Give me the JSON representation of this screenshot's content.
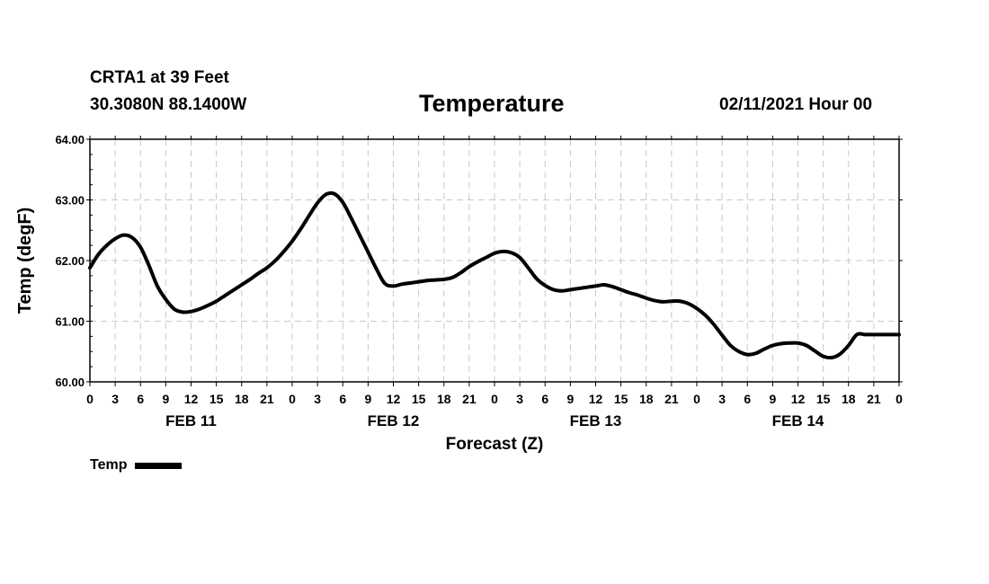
{
  "header": {
    "station": "CRTA1 at 39 Feet",
    "latlon": "30.3080N 88.1400W",
    "run": "02/11/2021 Hour 00"
  },
  "chart_data": {
    "type": "line",
    "title": "Temperature",
    "xlabel": "Forecast (Z)",
    "ylabel": "Temp (degF)",
    "ylim": [
      60.0,
      64.0
    ],
    "yticks": [
      "60.00",
      "61.00",
      "62.00",
      "63.00",
      "64.00"
    ],
    "xlim": [
      0,
      96
    ],
    "xtick_hours": [
      0,
      3,
      6,
      9,
      12,
      15,
      18,
      21,
      24,
      27,
      30,
      33,
      36,
      39,
      42,
      45,
      48,
      51,
      54,
      57,
      60,
      63,
      66,
      69,
      72,
      75,
      78,
      81,
      84,
      87,
      90,
      93,
      96
    ],
    "xtick_labels": [
      "0",
      "3",
      "6",
      "9",
      "12",
      "15",
      "18",
      "21",
      "0",
      "3",
      "6",
      "9",
      "12",
      "15",
      "18",
      "21",
      "0",
      "3",
      "6",
      "9",
      "12",
      "15",
      "18",
      "21",
      "0",
      "3",
      "6",
      "9",
      "12",
      "15",
      "18",
      "21",
      "0"
    ],
    "day_labels": [
      {
        "label": "FEB 11",
        "hour": 12
      },
      {
        "label": "FEB 12",
        "hour": 36
      },
      {
        "label": "FEB 13",
        "hour": 60
      },
      {
        "label": "FEB 14",
        "hour": 84
      }
    ],
    "grid": true,
    "series": [
      {
        "name": "Temp",
        "color": "#000000",
        "x": [
          0,
          1,
          2,
          3,
          4,
          5,
          6,
          7,
          8,
          9,
          10,
          11,
          12,
          13,
          14,
          15,
          16,
          17,
          18,
          19,
          20,
          21,
          22,
          23,
          24,
          25,
          26,
          27,
          28,
          29,
          30,
          31,
          32,
          33,
          34,
          35,
          36,
          37,
          38,
          39,
          40,
          41,
          42,
          43,
          44,
          45,
          46,
          47,
          48,
          49,
          50,
          51,
          52,
          53,
          54,
          55,
          56,
          57,
          58,
          59,
          60,
          61,
          62,
          63,
          64,
          65,
          66,
          67,
          68,
          69,
          70,
          71,
          72,
          73,
          74,
          75,
          76,
          77,
          78,
          79,
          80,
          81,
          82,
          83,
          84,
          85,
          86,
          87,
          88,
          89,
          90,
          91,
          92,
          93,
          94,
          95,
          96
        ],
        "values": [
          61.88,
          62.1,
          62.25,
          62.36,
          62.42,
          62.38,
          62.22,
          61.92,
          61.58,
          61.36,
          61.2,
          61.15,
          61.16,
          61.2,
          61.26,
          61.33,
          61.42,
          61.51,
          61.6,
          61.69,
          61.79,
          61.88,
          62.0,
          62.15,
          62.32,
          62.52,
          62.74,
          62.95,
          63.09,
          63.1,
          62.96,
          62.7,
          62.42,
          62.14,
          61.86,
          61.62,
          61.58,
          61.61,
          61.63,
          61.65,
          61.67,
          61.68,
          61.69,
          61.72,
          61.8,
          61.9,
          61.98,
          62.05,
          62.12,
          62.15,
          62.13,
          62.05,
          61.88,
          61.7,
          61.59,
          61.52,
          61.5,
          61.52,
          61.54,
          61.56,
          61.58,
          61.6,
          61.57,
          61.52,
          61.47,
          61.43,
          61.38,
          61.34,
          61.32,
          61.33,
          61.33,
          61.29,
          61.21,
          61.1,
          60.95,
          60.77,
          60.6,
          60.5,
          60.45,
          60.47,
          60.54,
          60.6,
          60.63,
          60.64,
          60.64,
          60.6,
          60.51,
          60.42,
          60.4,
          60.46,
          60.6,
          60.78,
          60.78,
          60.78,
          60.78,
          60.78,
          60.78
        ]
      }
    ],
    "legend": "bottom-left"
  }
}
